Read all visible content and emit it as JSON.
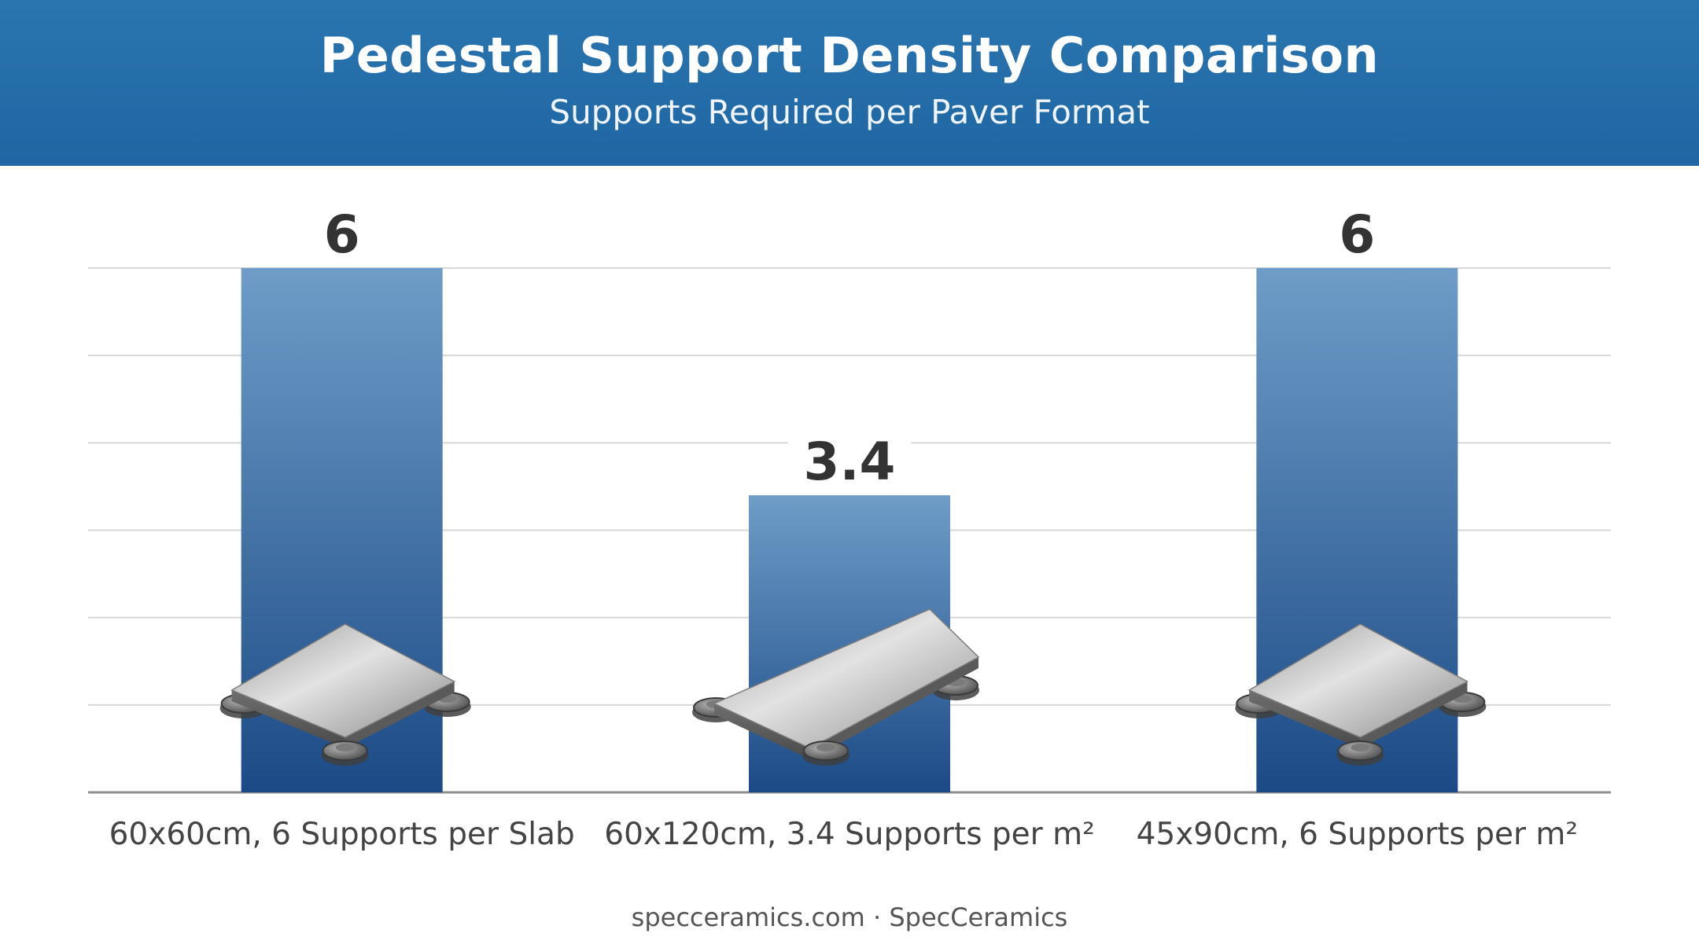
{
  "header": {
    "title": "Pedestal Support Density Comparison",
    "subtitle": "Supports Required per Paver Format"
  },
  "footer": {
    "text": "specceramics.com · SpecCeramics"
  },
  "colors": {
    "header": "#2470ad",
    "bar_top": "#6f9dc8",
    "bar_bottom": "#1b4a86",
    "grid": "#d7d7d7",
    "value_label": "#333333",
    "category_label": "#444444"
  },
  "chart_data": {
    "type": "bar",
    "title": "Pedestal Support Density Comparison",
    "subtitle": "Supports Required per Paver Format",
    "categories": [
      "60x60cm, 6 Supports per Slab",
      "60x120cm, 3.4 Supports per m²",
      "45x90cm, 6 Supports per m²"
    ],
    "values": [
      6,
      3.4,
      6
    ],
    "value_labels": [
      "6",
      "3.4",
      "6"
    ],
    "xlabel": "",
    "ylabel": "",
    "ylim": [
      0,
      6
    ],
    "y_tick_step": 1,
    "grid": true,
    "legend": "none",
    "icons": [
      "square-paver-on-pedestals-icon",
      "long-paver-on-pedestals-icon",
      "rect-paver-on-pedestals-icon"
    ]
  }
}
